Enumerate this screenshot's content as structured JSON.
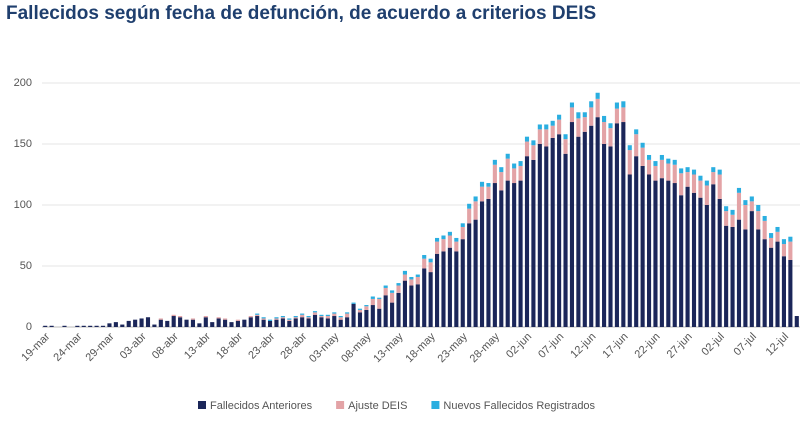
{
  "chart_data": {
    "type": "stacked_bar",
    "title": "Fallecidos según fecha de defunción, de acuerdo a criterios DEIS",
    "categories": [
      "19-mar",
      null,
      null,
      null,
      null,
      "24-mar",
      null,
      null,
      null,
      null,
      "29-mar",
      null,
      null,
      null,
      null,
      "03-abr",
      null,
      null,
      null,
      null,
      "08-abr",
      null,
      null,
      null,
      null,
      "13-abr",
      null,
      null,
      null,
      null,
      "18-abr",
      null,
      null,
      null,
      null,
      "23-abr",
      null,
      null,
      null,
      null,
      "28-abr",
      null,
      null,
      null,
      null,
      "03-may",
      null,
      null,
      null,
      null,
      "08-may",
      null,
      null,
      null,
      null,
      "13-may",
      null,
      null,
      null,
      null,
      "18-may",
      null,
      null,
      null,
      null,
      "23-may",
      null,
      null,
      null,
      null,
      "28-may",
      null,
      null,
      null,
      null,
      "02-jun",
      null,
      null,
      null,
      null,
      "07-jun",
      null,
      null,
      null,
      null,
      "12-jun",
      null,
      null,
      null,
      null,
      "17-jun",
      null,
      null,
      null,
      null,
      "22-jun",
      null,
      null,
      null,
      null,
      "27-jun",
      null,
      null,
      null,
      null,
      "02-jul",
      null,
      null,
      null,
      null,
      "07-jul",
      null,
      null,
      null,
      null,
      "12-jul",
      null,
      null
    ],
    "series": [
      {
        "name": "Fallecidos Anteriores",
        "color": "#1b2659",
        "values": [
          1,
          1,
          0,
          1,
          0,
          1,
          1,
          1,
          1,
          1,
          3,
          4,
          2,
          5,
          6,
          7,
          8,
          2,
          6,
          5,
          9,
          8,
          6,
          6,
          3,
          8,
          4,
          7,
          6,
          4,
          5,
          6,
          8,
          9,
          6,
          5,
          6,
          7,
          5,
          7,
          8,
          7,
          10,
          8,
          7,
          9,
          6,
          8,
          19,
          12,
          14,
          18,
          15,
          26,
          20,
          28,
          38,
          34,
          35,
          48,
          45,
          60,
          62,
          65,
          62,
          72,
          85,
          88,
          103,
          105,
          118,
          112,
          120,
          118,
          120,
          140,
          137,
          150,
          148,
          155,
          158,
          142,
          168,
          156,
          160,
          165,
          172,
          150,
          148,
          167,
          168,
          125,
          140,
          132,
          125,
          120,
          122,
          120,
          118,
          108,
          115,
          110,
          106,
          100,
          117,
          105,
          83,
          82,
          88,
          80,
          95,
          80,
          72,
          65,
          70,
          58,
          55,
          9
        ]
      },
      {
        "name": "Ajuste DEIS",
        "color": "#e3a3a6",
        "values": [
          0,
          0,
          0,
          0,
          0,
          0,
          0,
          0,
          0,
          0,
          0,
          0,
          0,
          0,
          0,
          0,
          0,
          0,
          1,
          0,
          1,
          1,
          0,
          1,
          0,
          1,
          0,
          1,
          1,
          0,
          1,
          0,
          1,
          1,
          1,
          0,
          1,
          1,
          1,
          1,
          2,
          1,
          2,
          1,
          2,
          2,
          2,
          3,
          0,
          2,
          3,
          5,
          8,
          6,
          8,
          6,
          5,
          5,
          6,
          8,
          8,
          10,
          10,
          10,
          8,
          10,
          12,
          15,
          12,
          10,
          15,
          15,
          18,
          12,
          12,
          12,
          12,
          12,
          14,
          10,
          12,
          12,
          12,
          15,
          12,
          15,
          15,
          18,
          15,
          12,
          12,
          20,
          18,
          15,
          12,
          12,
          15,
          14,
          15,
          18,
          12,
          15,
          14,
          16,
          10,
          20,
          12,
          10,
          22,
          20,
          8,
          15,
          15,
          8,
          8,
          10,
          15,
          0
        ]
      },
      {
        "name": "Nuevos Fallecidos Registrados",
        "color": "#2aaee0",
        "values": [
          0,
          0,
          0,
          0,
          0,
          0,
          0,
          0,
          0,
          0,
          0,
          0,
          0,
          0,
          0,
          0,
          0,
          0,
          0,
          0,
          0,
          0,
          0,
          0,
          0,
          0,
          0,
          0,
          0,
          0,
          0,
          0,
          0,
          1,
          1,
          1,
          1,
          1,
          1,
          1,
          1,
          1,
          1,
          1,
          1,
          1,
          1,
          1,
          1,
          1,
          1,
          2,
          1,
          2,
          2,
          2,
          3,
          2,
          2,
          3,
          3,
          3,
          3,
          3,
          3,
          3,
          4,
          4,
          4,
          3,
          4,
          4,
          4,
          4,
          4,
          4,
          4,
          4,
          4,
          4,
          4,
          4,
          4,
          5,
          4,
          5,
          5,
          5,
          4,
          5,
          5,
          4,
          4,
          4,
          4,
          4,
          4,
          4,
          4,
          4,
          4,
          4,
          4,
          4,
          4,
          4,
          4,
          4,
          4,
          4,
          4,
          5,
          4,
          4,
          4,
          4,
          4,
          0
        ]
      }
    ],
    "ylim": [
      0,
      200
    ],
    "yticks": [
      0,
      50,
      100,
      150,
      200
    ],
    "grid": true,
    "legend": "bottom"
  }
}
